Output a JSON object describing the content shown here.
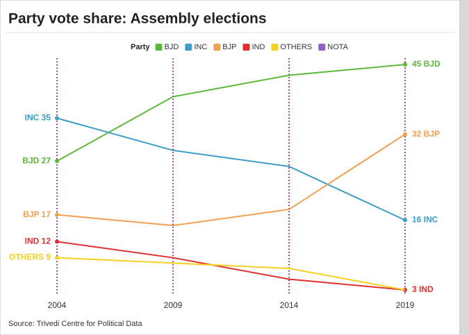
{
  "chart_data": {
    "type": "line",
    "title": "Party vote share: Assembly elections",
    "legend_title": "Party",
    "source": "Source: Trivedi Centre for Political Data",
    "categories": [
      "2004",
      "2009",
      "2014",
      "2019"
    ],
    "ylim": [
      3,
      45
    ],
    "series": [
      {
        "name": "BJD",
        "color": "#5cb83a",
        "values": [
          27,
          39,
          43,
          45
        ],
        "value_labels": [
          "BJD 27",
          null,
          null,
          "45 BJD"
        ]
      },
      {
        "name": "INC",
        "color": "#3d9cc8",
        "values": [
          35,
          29,
          26,
          16
        ],
        "value_labels": [
          "INC 35",
          null,
          null,
          "16 INC"
        ]
      },
      {
        "name": "BJP",
        "color": "#f0a050",
        "values": [
          17,
          15,
          18,
          32
        ],
        "value_labels": [
          "BJP 17",
          null,
          null,
          "32 BJP"
        ]
      },
      {
        "name": "IND",
        "color": "#e03030",
        "values": [
          12,
          9,
          5,
          3
        ],
        "value_labels": [
          "IND 12",
          null,
          null,
          "3 IND"
        ]
      },
      {
        "name": "OTHERS",
        "color": "#f5d020",
        "values": [
          9,
          8,
          7,
          3
        ],
        "value_labels": [
          "OTHERS 9",
          null,
          null,
          null
        ]
      },
      {
        "name": "NOTA",
        "color": "#9060c0",
        "values": [
          null,
          null,
          null,
          null
        ]
      }
    ]
  }
}
